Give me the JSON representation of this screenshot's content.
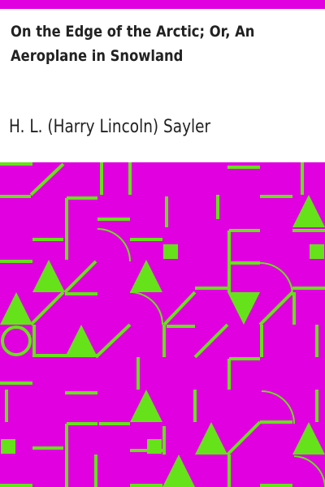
{
  "cover": {
    "title_line1": "On the Edge of the Arctic; Or, An",
    "title_line2": "Aeroplane in Snowland",
    "author": "H. L. (Harry Lincoln) Sayler"
  },
  "colors": {
    "band": "#e000e0",
    "pattern_background": "#e000e0",
    "pattern_shapes": "#66e21a",
    "text": "#222222"
  }
}
